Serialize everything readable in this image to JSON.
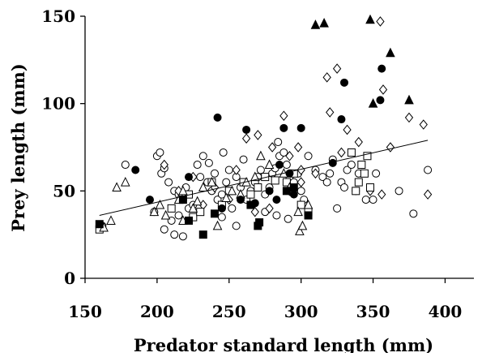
{
  "chart_data": {
    "type": "scatter",
    "title": "",
    "xlabel": "Predator standard length (mm)",
    "ylabel": "Prey length (mm)",
    "xlim": [
      150,
      420
    ],
    "ylim": [
      0,
      150
    ],
    "xticks": [
      150,
      200,
      250,
      300,
      350,
      400
    ],
    "yticks": [
      0,
      50,
      100,
      150
    ],
    "grid": false,
    "legend": "none",
    "series": [
      {
        "marker": "circle-open",
        "points": [
          [
            162,
            30
          ],
          [
            178,
            65
          ],
          [
            200,
            70
          ],
          [
            202,
            72
          ],
          [
            203,
            60
          ],
          [
            205,
            63
          ],
          [
            208,
            55
          ],
          [
            212,
            50
          ],
          [
            215,
            48
          ],
          [
            218,
            45
          ],
          [
            220,
            52
          ],
          [
            222,
            40
          ],
          [
            225,
            42
          ],
          [
            205,
            28
          ],
          [
            210,
            33
          ],
          [
            212,
            25
          ],
          [
            215,
            36
          ],
          [
            218,
            24
          ],
          [
            228,
            65
          ],
          [
            230,
            58
          ],
          [
            232,
            70
          ],
          [
            235,
            55
          ],
          [
            238,
            50
          ],
          [
            240,
            60
          ],
          [
            242,
            45
          ],
          [
            245,
            48
          ],
          [
            248,
            55
          ],
          [
            250,
            62
          ],
          [
            252,
            40
          ],
          [
            255,
            58
          ],
          [
            258,
            52
          ],
          [
            260,
            68
          ],
          [
            262,
            45
          ],
          [
            265,
            50
          ],
          [
            268,
            55
          ],
          [
            270,
            58
          ],
          [
            272,
            62
          ],
          [
            275,
            48
          ],
          [
            278,
            52
          ],
          [
            280,
            60
          ],
          [
            282,
            63
          ],
          [
            285,
            70
          ],
          [
            288,
            72
          ],
          [
            290,
            65
          ],
          [
            292,
            58
          ],
          [
            295,
            55
          ],
          [
            298,
            60
          ],
          [
            300,
            50
          ],
          [
            302,
            45
          ],
          [
            305,
            70
          ],
          [
            310,
            62
          ],
          [
            315,
            58
          ],
          [
            318,
            55
          ],
          [
            320,
            60
          ],
          [
            322,
            68
          ],
          [
            325,
            40
          ],
          [
            328,
            55
          ],
          [
            330,
            52
          ],
          [
            332,
            62
          ],
          [
            335,
            65
          ],
          [
            338,
            50
          ],
          [
            340,
            60
          ],
          [
            345,
            45
          ],
          [
            350,
            45
          ],
          [
            352,
            60
          ],
          [
            368,
            50
          ],
          [
            378,
            37
          ],
          [
            388,
            62
          ],
          [
            245,
            35
          ],
          [
            255,
            30
          ],
          [
            265,
            42
          ],
          [
            275,
            38
          ],
          [
            283,
            36
          ],
          [
            291,
            34
          ],
          [
            198,
            38
          ],
          [
            236,
            66
          ],
          [
            246,
            72
          ],
          [
            284,
            78
          ]
        ]
      },
      {
        "marker": "diamond-open",
        "points": [
          [
            205,
            65
          ],
          [
            225,
            58
          ],
          [
            240,
            52
          ],
          [
            255,
            62
          ],
          [
            262,
            80
          ],
          [
            270,
            82
          ],
          [
            280,
            75
          ],
          [
            288,
            93
          ],
          [
            292,
            70
          ],
          [
            298,
            75
          ],
          [
            300,
            62
          ],
          [
            310,
            60
          ],
          [
            320,
            95
          ],
          [
            325,
            120
          ],
          [
            318,
            115
          ],
          [
            328,
            72
          ],
          [
            332,
            85
          ],
          [
            340,
            78
          ],
          [
            355,
            147
          ],
          [
            357,
            108
          ],
          [
            362,
            75
          ],
          [
            375,
            92
          ],
          [
            385,
            88
          ],
          [
            388,
            48
          ],
          [
            356,
            48
          ],
          [
            348,
            50
          ],
          [
            292,
            50
          ],
          [
            278,
            40
          ],
          [
            268,
            38
          ],
          [
            232,
            42
          ],
          [
            215,
            50
          ],
          [
            250,
            45
          ],
          [
            300,
            55
          ]
        ]
      },
      {
        "marker": "square-open",
        "points": [
          [
            160,
            28
          ],
          [
            210,
            40
          ],
          [
            222,
            48
          ],
          [
            225,
            35
          ],
          [
            230,
            38
          ],
          [
            238,
            55
          ],
          [
            245,
            42
          ],
          [
            250,
            50
          ],
          [
            260,
            55
          ],
          [
            265,
            48
          ],
          [
            270,
            52
          ],
          [
            275,
            58
          ],
          [
            282,
            56
          ],
          [
            290,
            55
          ],
          [
            295,
            60
          ],
          [
            300,
            42
          ],
          [
            305,
            38
          ],
          [
            335,
            72
          ],
          [
            338,
            50
          ],
          [
            340,
            55
          ],
          [
            342,
            65
          ],
          [
            344,
            60
          ],
          [
            346,
            70
          ],
          [
            348,
            52
          ]
        ]
      },
      {
        "marker": "triangle-open",
        "points": [
          [
            163,
            29
          ],
          [
            168,
            33
          ],
          [
            172,
            52
          ],
          [
            178,
            55
          ],
          [
            198,
            38
          ],
          [
            202,
            42
          ],
          [
            215,
            45
          ],
          [
            218,
            50
          ],
          [
            225,
            40
          ],
          [
            228,
            44
          ],
          [
            232,
            52
          ],
          [
            238,
            55
          ],
          [
            242,
            30
          ],
          [
            248,
            46
          ],
          [
            252,
            50
          ],
          [
            258,
            48
          ],
          [
            262,
            55
          ],
          [
            268,
            58
          ],
          [
            272,
            70
          ],
          [
            278,
            65
          ],
          [
            288,
            60
          ],
          [
            292,
            52
          ],
          [
            298,
            38
          ],
          [
            299,
            27
          ],
          [
            301,
            30
          ],
          [
            305,
            42
          ],
          [
            218,
            33
          ],
          [
            206,
            36
          ]
        ]
      },
      {
        "marker": "circle-filled",
        "points": [
          [
            185,
            62
          ],
          [
            195,
            45
          ],
          [
            222,
            58
          ],
          [
            242,
            92
          ],
          [
            258,
            45
          ],
          [
            262,
            85
          ],
          [
            268,
            43
          ],
          [
            278,
            50
          ],
          [
            285,
            65
          ],
          [
            288,
            86
          ],
          [
            292,
            60
          ],
          [
            295,
            48
          ],
          [
            300,
            86
          ],
          [
            328,
            91
          ],
          [
            330,
            112
          ],
          [
            322,
            66
          ],
          [
            355,
            102
          ],
          [
            356,
            120
          ],
          [
            283,
            45
          ],
          [
            245,
            40
          ]
        ]
      },
      {
        "marker": "square-filled",
        "points": [
          [
            160,
            31
          ],
          [
            218,
            45
          ],
          [
            222,
            33
          ],
          [
            232,
            25
          ],
          [
            240,
            37
          ],
          [
            265,
            42
          ],
          [
            270,
            30
          ],
          [
            271,
            32
          ],
          [
            290,
            50
          ],
          [
            295,
            52
          ],
          [
            305,
            36
          ]
        ]
      },
      {
        "marker": "triangle-filled",
        "points": [
          [
            310,
            145
          ],
          [
            316,
            146
          ],
          [
            348,
            148
          ],
          [
            362,
            129
          ],
          [
            350,
            100
          ],
          [
            375,
            102
          ]
        ]
      }
    ],
    "trendline": {
      "x": [
        160,
        388
      ],
      "y": [
        36,
        79
      ]
    }
  }
}
